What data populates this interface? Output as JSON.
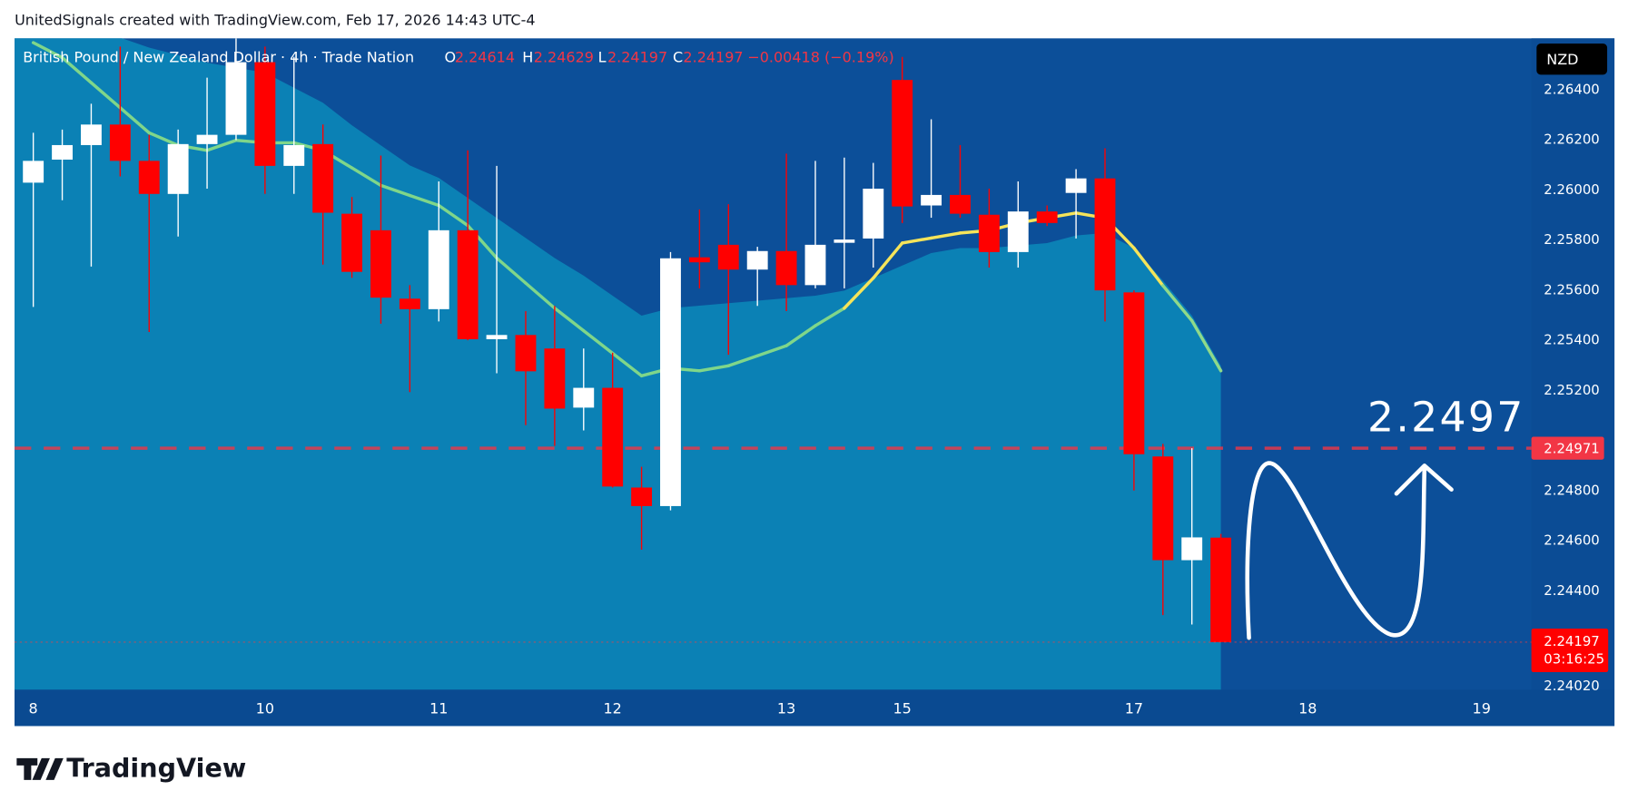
{
  "chart_data": {
    "type": "candlestick",
    "title": "UnitedSignals created with TradingView.com, Feb 17, 2026 14:43 UTC-4",
    "symbol": "British Pound / New Zealand Dollar · 4h · Trade Nation",
    "ohlc_labels": [
      "O",
      "H",
      "L",
      "C"
    ],
    "change_label": "−0.00418 (−0.19%)",
    "currency": "NZD",
    "countdown": "03:16:25",
    "annotation": "2.2497",
    "brand": "TradingView",
    "up_color": "#ffffff",
    "down_color": "#ff0000",
    "level": {
      "value": 2.24971,
      "color": "#f23645"
    },
    "categories": [
      "8",
      null,
      null,
      null,
      null,
      null,
      null,
      null,
      "10",
      null,
      null,
      null,
      null,
      null,
      "11",
      null,
      null,
      null,
      null,
      null,
      "12",
      null,
      null,
      null,
      null,
      null,
      "13",
      null,
      null,
      null,
      "15",
      null,
      null,
      null,
      null,
      null,
      null,
      null,
      "17",
      null,
      null,
      null,
      null,
      null,
      "18",
      null,
      null,
      null,
      null,
      null,
      "19",
      null
    ],
    "open": [
      2.26031,
      2.26123,
      2.26181,
      2.26263,
      2.26118,
      2.25986,
      2.26185,
      2.26222,
      2.26512,
      2.26098,
      2.26185,
      2.25907,
      2.25841,
      2.25568,
      2.25526,
      2.25841,
      2.25406,
      2.25423,
      2.25369,
      2.25133,
      2.25212,
      2.24814,
      2.2474,
      2.25733,
      2.25783,
      2.25684,
      2.25758,
      2.25622,
      2.25791,
      2.25808,
      2.26441,
      2.2594,
      2.25982,
      2.25903,
      2.25754,
      2.25916,
      2.2599,
      2.26048,
      2.25593,
      2.24938,
      2.24524,
      2.24614,
      null,
      null,
      null,
      null,
      null,
      null,
      null,
      null,
      null,
      null
    ],
    "high": [
      2.2623,
      2.26243,
      2.26346,
      2.26574,
      2.26222,
      2.26243,
      2.2645,
      2.26607,
      2.26574,
      2.26533,
      2.26263,
      2.25974,
      2.26139,
      2.25622,
      2.26036,
      2.2616,
      2.26098,
      2.25518,
      2.25539,
      2.25369,
      2.25352,
      2.24897,
      2.25754,
      2.25924,
      2.25945,
      2.25775,
      2.26147,
      2.26118,
      2.26131,
      2.2611,
      2.26533,
      2.26284,
      2.26181,
      2.26007,
      2.26036,
      2.2594,
      2.26085,
      2.26168,
      2.25601,
      2.24988,
      2.24971,
      2.24629,
      null,
      null,
      null,
      null,
      null,
      null,
      null,
      null,
      null,
      null
    ],
    "low": [
      2.25535,
      2.25961,
      2.25696,
      2.26056,
      2.25435,
      2.25816,
      2.26007,
      2.26201,
      2.25986,
      2.25986,
      2.25704,
      2.25651,
      2.25468,
      2.25195,
      2.25477,
      2.25402,
      2.2527,
      2.25063,
      2.2498,
      2.25042,
      2.24814,
      2.24566,
      2.24723,
      2.25609,
      2.25344,
      2.25539,
      2.25518,
      2.25609,
      2.25609,
      2.25692,
      2.2587,
      2.25891,
      2.25891,
      2.25692,
      2.25692,
      2.25858,
      2.25808,
      2.25477,
      2.24802,
      2.24305,
      2.24267,
      2.24197,
      null,
      null,
      null,
      null,
      null,
      null,
      null,
      null,
      null,
      null
    ],
    "close": [
      2.26118,
      2.26181,
      2.26263,
      2.26118,
      2.25986,
      2.26185,
      2.26222,
      2.26512,
      2.26098,
      2.26181,
      2.25911,
      2.25675,
      2.25572,
      2.25526,
      2.25841,
      2.25406,
      2.25423,
      2.25278,
      2.25129,
      2.25212,
      2.24818,
      2.2474,
      2.25729,
      2.25713,
      2.25684,
      2.25758,
      2.25622,
      2.25783,
      2.25804,
      2.26007,
      2.25936,
      2.25982,
      2.25907,
      2.25754,
      2.25916,
      2.2587,
      2.26048,
      2.25601,
      2.24947,
      2.24524,
      2.24615,
      2.24197,
      null,
      null,
      null,
      null,
      null,
      null,
      null,
      null,
      null,
      null
    ],
    "ma": [
      2.2659,
      2.2653,
      2.2643,
      2.2633,
      2.2623,
      2.2618,
      2.2616,
      2.262,
      2.2619,
      2.2619,
      2.2616,
      2.2609,
      2.2602,
      2.2598,
      2.2594,
      2.2586,
      2.2573,
      2.2563,
      2.2553,
      2.2544,
      2.2535,
      2.2526,
      2.2529,
      2.2528,
      2.253,
      2.2534,
      2.2538,
      2.2546,
      2.2553,
      2.2565,
      2.2579,
      2.2581,
      2.2583,
      2.2584,
      2.2587,
      2.2589,
      2.2591,
      2.2589,
      2.2577,
      2.2562,
      2.2548,
      2.2528,
      null,
      null,
      null,
      null,
      null,
      null,
      null,
      null,
      null,
      null
    ],
    "ma_colors": [
      "#7fd68a",
      "#7fd68a",
      "#7fd68a",
      "#7fd68a",
      "#7fd68a",
      "#7fd68a",
      "#7fd68a",
      "#7fd68a",
      "#7fd68a",
      "#7fd68a",
      "#7fd68a",
      "#7fd68a",
      "#7fd68a",
      "#7fd68a",
      "#7fd68a",
      "#7fd68a",
      "#7fd68a",
      "#7fd68a",
      "#7fd68a",
      "#7fd68a",
      "#7fd68a",
      "#7fd68a",
      "#7fd68a",
      "#7fd68a",
      "#7fd68a",
      "#7fd68a",
      "#7fd68a",
      "#7fd68a",
      "#7fd68a",
      "#f5e45a",
      "#f5e45a",
      "#f5e45a",
      "#f5e45a",
      "#f5e45a",
      "#f5e45a",
      "#f5e45a",
      "#f5e45a",
      "#f5e45a",
      "#f5e45a",
      "#f5e45a",
      "#8fd98a",
      "#8fd98a",
      null,
      null,
      null,
      null,
      null,
      null,
      null,
      null,
      null,
      null
    ],
    "band": [
      2.2661,
      2.2661,
      2.2661,
      2.2661,
      2.2657,
      2.2654,
      2.2651,
      2.2649,
      2.2647,
      2.2641,
      2.2635,
      2.2626,
      2.2618,
      2.261,
      2.2605,
      2.2597,
      2.2589,
      2.2581,
      2.2573,
      2.2566,
      2.2558,
      2.255,
      2.2553,
      2.2554,
      2.2555,
      2.2556,
      2.2557,
      2.2558,
      2.256,
      2.2565,
      2.257,
      2.2575,
      2.2577,
      2.2577,
      2.2578,
      2.2579,
      2.2582,
      2.2583,
      2.2577,
      2.2564,
      2.255,
      2.253,
      null,
      null,
      null,
      null,
      null,
      null,
      null,
      null,
      null,
      null
    ],
    "band_color": "#0b86b8",
    "ylim": [
      2.24007,
      2.26607
    ],
    "yticks": [
      {
        "value": 2.264,
        "label": "2.26400"
      },
      {
        "value": 2.262,
        "label": "2.26200"
      },
      {
        "value": 2.26,
        "label": "2.26000"
      },
      {
        "value": 2.258,
        "label": "2.25800"
      },
      {
        "value": 2.256,
        "label": "2.25600"
      },
      {
        "value": 2.254,
        "label": "2.25400"
      },
      {
        "value": 2.252,
        "label": "2.25200"
      },
      {
        "value": 2.248,
        "label": "2.24800"
      },
      {
        "value": 2.246,
        "label": "2.24600"
      },
      {
        "value": 2.244,
        "label": "2.24400"
      },
      {
        "value": 2.2402,
        "label": "2.24020"
      }
    ],
    "grid": false
  }
}
